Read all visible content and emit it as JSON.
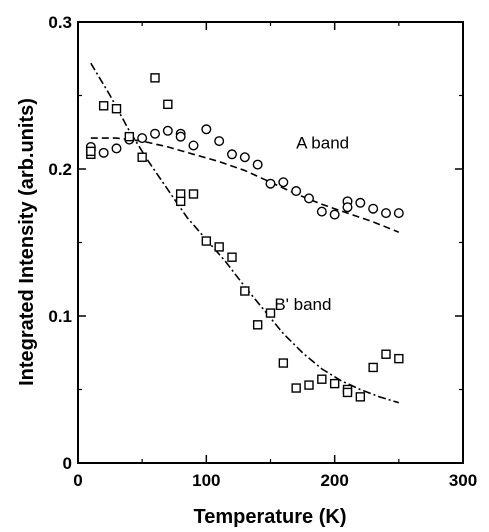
{
  "chart_data": {
    "type": "scatter",
    "xlabel": "Temperature (K)",
    "ylabel": "Integrated Intensity (arb.units)",
    "xlim": [
      0,
      300
    ],
    "ylim": [
      0,
      0.3
    ],
    "xticks": [
      0,
      100,
      200,
      300
    ],
    "yticks": [
      0,
      0.1,
      0.2,
      0.3
    ],
    "x_tick_labels": [
      "0",
      "100",
      "200",
      "300"
    ],
    "y_tick_labels": [
      "0",
      "0.1",
      "0.2",
      "0.3"
    ],
    "grid": false,
    "legend": "none",
    "series": [
      {
        "marker": "circle",
        "points": [
          [
            10,
            0.213
          ],
          [
            10,
            0.215
          ],
          [
            20,
            0.211
          ],
          [
            30,
            0.214
          ],
          [
            40,
            0.22
          ],
          [
            50,
            0.221
          ],
          [
            60,
            0.224
          ],
          [
            70,
            0.226
          ],
          [
            80,
            0.224
          ],
          [
            80,
            0.222
          ],
          [
            90,
            0.216
          ],
          [
            100,
            0.227
          ],
          [
            110,
            0.219
          ],
          [
            120,
            0.21
          ],
          [
            130,
            0.208
          ],
          [
            140,
            0.203
          ],
          [
            150,
            0.19
          ],
          [
            160,
            0.191
          ],
          [
            170,
            0.185
          ],
          [
            180,
            0.18
          ],
          [
            190,
            0.171
          ],
          [
            200,
            0.169
          ],
          [
            210,
            0.178
          ],
          [
            210,
            0.174
          ],
          [
            220,
            0.177
          ],
          [
            230,
            0.173
          ],
          [
            240,
            0.17
          ],
          [
            250,
            0.17
          ]
        ]
      },
      {
        "marker": "square",
        "points": [
          [
            10,
            0.21
          ],
          [
            10,
            0.212
          ],
          [
            20,
            0.243
          ],
          [
            30,
            0.241
          ],
          [
            40,
            0.222
          ],
          [
            50,
            0.208
          ],
          [
            60,
            0.262
          ],
          [
            70,
            0.244
          ],
          [
            80,
            0.183
          ],
          [
            80,
            0.178
          ],
          [
            90,
            0.183
          ],
          [
            100,
            0.151
          ],
          [
            110,
            0.147
          ],
          [
            120,
            0.14
          ],
          [
            130,
            0.117
          ],
          [
            140,
            0.094
          ],
          [
            150,
            0.102
          ],
          [
            160,
            0.068
          ],
          [
            170,
            0.051
          ],
          [
            180,
            0.053
          ],
          [
            190,
            0.057
          ],
          [
            200,
            0.054
          ],
          [
            210,
            0.05
          ],
          [
            210,
            0.048
          ],
          [
            220,
            0.045
          ],
          [
            230,
            0.065
          ],
          [
            240,
            0.074
          ],
          [
            250,
            0.071
          ]
        ]
      }
    ],
    "fit_lines": [
      {
        "style": "dashed",
        "points": [
          [
            10,
            0.221
          ],
          [
            30,
            0.221
          ],
          [
            50,
            0.219
          ],
          [
            70,
            0.215
          ],
          [
            90,
            0.21
          ],
          [
            110,
            0.205
          ],
          [
            130,
            0.199
          ],
          [
            150,
            0.191
          ],
          [
            170,
            0.183
          ],
          [
            190,
            0.176
          ],
          [
            210,
            0.17
          ],
          [
            230,
            0.164
          ],
          [
            250,
            0.157
          ]
        ]
      },
      {
        "style": "dash-dot",
        "points": [
          [
            10,
            0.272
          ],
          [
            25,
            0.25
          ],
          [
            40,
            0.226
          ],
          [
            55,
            0.205
          ],
          [
            70,
            0.186
          ],
          [
            85,
            0.167
          ],
          [
            100,
            0.152
          ],
          [
            115,
            0.137
          ],
          [
            130,
            0.12
          ],
          [
            145,
            0.104
          ],
          [
            160,
            0.088
          ],
          [
            175,
            0.075
          ],
          [
            190,
            0.064
          ],
          [
            205,
            0.056
          ],
          [
            220,
            0.05
          ],
          [
            235,
            0.045
          ],
          [
            250,
            0.041
          ]
        ]
      }
    ],
    "annotations": [
      {
        "text": "A band",
        "x": 170,
        "y": 0.218
      },
      {
        "text": "B' band",
        "x": 153,
        "y": 0.108
      }
    ]
  }
}
